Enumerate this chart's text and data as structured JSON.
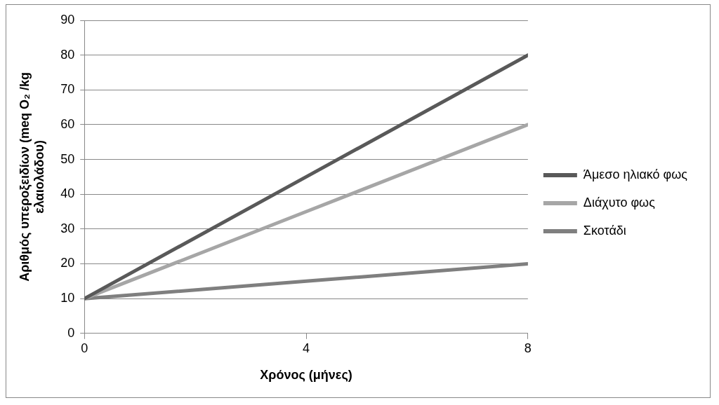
{
  "chart_data": {
    "type": "line",
    "xlabel": "Χρόνος (μήνες)",
    "ylabel": "Αριθμός υπεροξειδίων (meq O₂ /kg ελαιολάδου)",
    "x": [
      0,
      4,
      8
    ],
    "series": [
      {
        "name": "Άμεσο ηλιακό φως",
        "color": "#595959",
        "values": [
          10,
          45,
          80
        ]
      },
      {
        "name": "Διάχυτο φως",
        "color": "#a6a6a6",
        "values": [
          10,
          35,
          60
        ]
      },
      {
        "name": "Σκοτάδι",
        "color": "#7f7f7f",
        "values": [
          10,
          15,
          20
        ]
      }
    ],
    "xlim": [
      0,
      8
    ],
    "xticks": [
      0,
      4,
      8
    ],
    "ylim": [
      0,
      90
    ],
    "yticks": [
      0,
      10,
      20,
      30,
      40,
      50,
      60,
      70,
      80,
      90
    ],
    "grid": "y",
    "legend": "right"
  }
}
